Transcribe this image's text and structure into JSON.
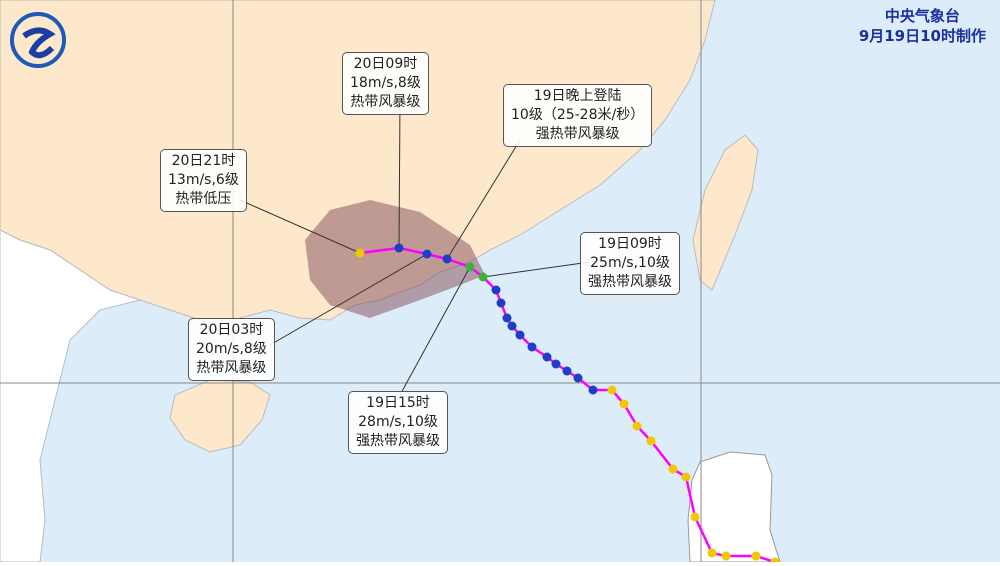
{
  "header": {
    "agency": "中央气象台",
    "issued": "9月19日10时制作"
  },
  "colors": {
    "land": "#fde8cc",
    "sea": "#dceefa",
    "foreign_land": "#ffffff",
    "track": "#ff00ff",
    "cone": "#8b5a62",
    "tropical_storm": "#1e3ec8",
    "severe_tropical_storm": "#3cb43c",
    "depression": "#f0c800"
  },
  "annotations": [
    {
      "id": "a2009",
      "lines": [
        "20日09时",
        "18m/s,8级",
        "热带风暴级"
      ]
    },
    {
      "id": "landfall",
      "lines": [
        "19日晚上登陆",
        "10级（25-28米/秒）",
        "强热带风暴级"
      ]
    },
    {
      "id": "a2021",
      "lines": [
        "20日21时",
        "13m/s,6级",
        "热带低压"
      ]
    },
    {
      "id": "a1909",
      "lines": [
        "19日09时",
        "25m/s,10级",
        "强热带风暴级"
      ]
    },
    {
      "id": "a2003",
      "lines": [
        "20日03时",
        "20m/s,8级",
        "热带风暴级"
      ]
    },
    {
      "id": "a1915",
      "lines": [
        "19日15时",
        "28m/s,10级",
        "强热带风暴级"
      ]
    }
  ],
  "logo_icon": "cma-logo"
}
